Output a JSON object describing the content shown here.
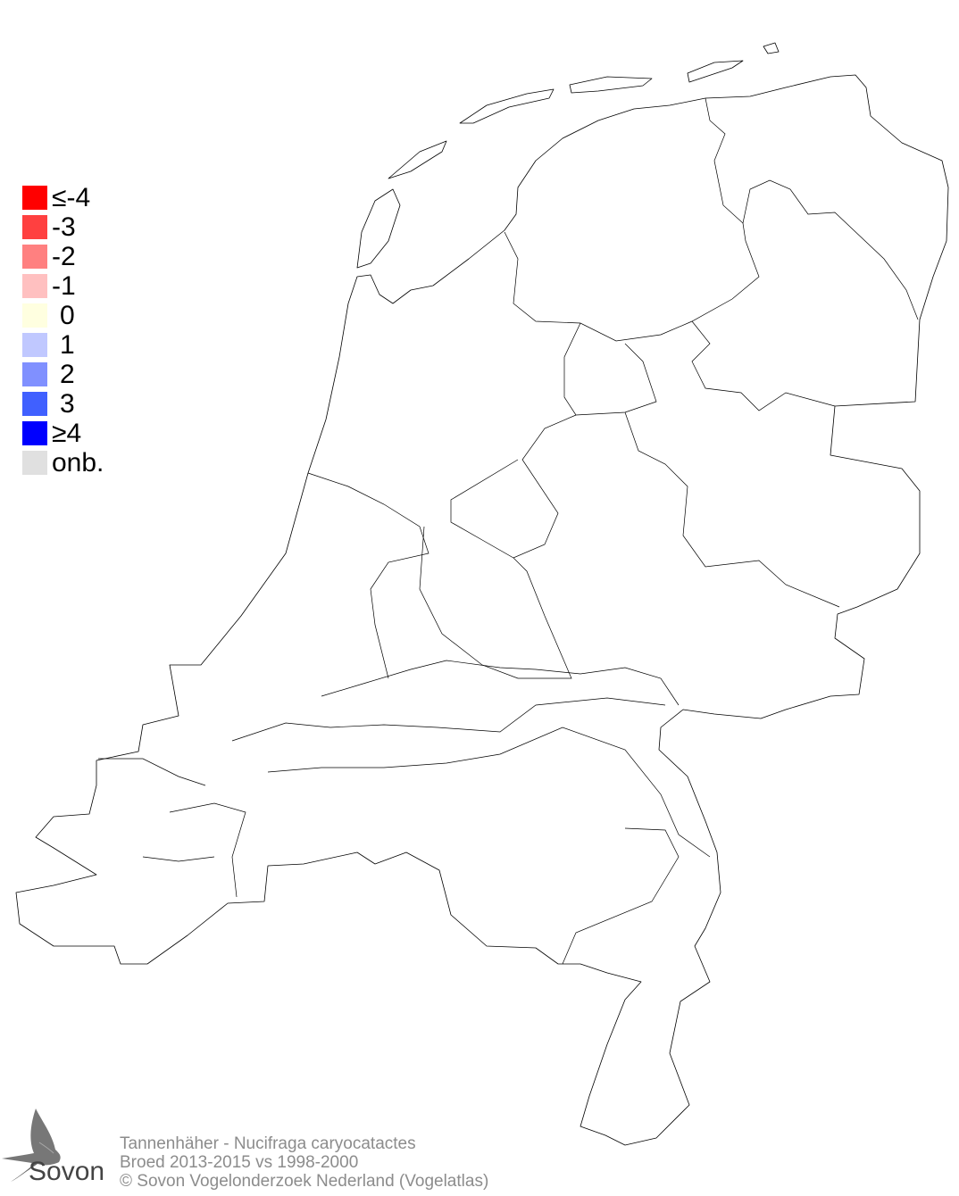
{
  "legend": {
    "items": [
      {
        "label": "≤-4",
        "color": "#ff0000"
      },
      {
        "label": "-3",
        "color": "#ff4040"
      },
      {
        "label": "-2",
        "color": "#ff8080"
      },
      {
        "label": "-1",
        "color": "#ffc0c0"
      },
      {
        "label": "0",
        "color": "#ffffe0"
      },
      {
        "label": "1",
        "color": "#c0c8ff"
      },
      {
        "label": "2",
        "color": "#8090ff"
      },
      {
        "label": "3",
        "color": "#4060ff"
      },
      {
        "label": "≥4",
        "color": "#0000ff"
      },
      {
        "label": "onb.",
        "color": "#e0e0e0"
      }
    ]
  },
  "footer": {
    "species": "Tannenhäher - Nucifraga caryocatactes",
    "period": "Broed 2013-2015 vs 1998-2000",
    "copyright": "© Sovon Vogelonderzoek Nederland (Vogelatlas)"
  },
  "logo": {
    "text": "Sovon"
  },
  "map": {
    "fill": "#ffffff",
    "stroke": "#000000"
  }
}
